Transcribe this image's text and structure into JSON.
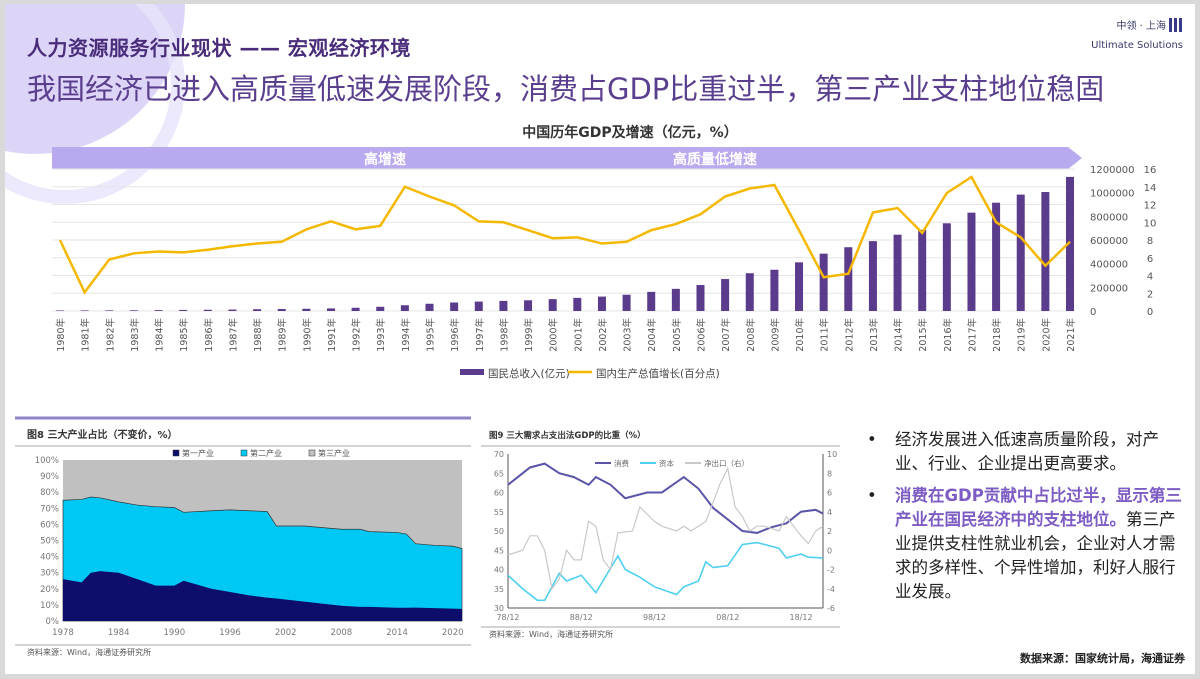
{
  "header": {
    "title": "人力资源服务行业现状 —— 宏观经济环境",
    "subtitle": "我国经济已进入高质量低速发展阶段，消费占GDP比重过半，第三产业支柱地位稳固"
  },
  "logo": {
    "cn": "中领 · 上海",
    "en": "Ultimate Solutions"
  },
  "colors": {
    "bar": "#5b3b8c",
    "line": "#f5b800",
    "band": "#b9aaf0",
    "primary": "#0d0d6b",
    "secondary": "#00c8f5",
    "tertiary": "#c0c0c0",
    "consumption": "#5a55a8",
    "investment": "#4fd0f0",
    "net_export": "#c8c8c8"
  },
  "chart_data": [
    {
      "type": "bar+line",
      "title": "中国历年GDP及增速（亿元，%）",
      "phases": [
        "高增速",
        "高质量低增速"
      ],
      "categories": [
        "1980年",
        "1981年",
        "1982年",
        "1983年",
        "1984年",
        "1985年",
        "1986年",
        "1987年",
        "1988年",
        "1989年",
        "1990年",
        "1991年",
        "1992年",
        "1993年",
        "1994年",
        "1995年",
        "1996年",
        "1997年",
        "1998年",
        "1999年",
        "2000年",
        "2001年",
        "2002年",
        "2003年",
        "2004年",
        "2005年",
        "2006年",
        "2007年",
        "2008年",
        "2009年",
        "2010年",
        "2011年",
        "2012年",
        "2013年",
        "2014年",
        "2015年",
        "2016年",
        "2017年",
        "2018年",
        "2019年",
        "2020年",
        "2021年"
      ],
      "series": [
        {
          "name": "国民总收入(亿元)",
          "type": "bar",
          "axis": "left",
          "values": [
            4588,
            4936,
            5373,
            6021,
            7279,
            9099,
            10376,
            12175,
            15180,
            17180,
            18873,
            22006,
            27195,
            35673,
            48638,
            61340,
            71814,
            79715,
            85196,
            90564,
            100280,
            110863,
            121717,
            137422,
            161840,
            187319,
            219439,
            270092,
            319245,
            348518,
            411265,
            484753,
            539116,
            590422,
            644791,
            686450,
            741140,
            830945,
            915243,
            983751,
            1005451,
            1133240
          ]
        },
        {
          "name": "国内生产总值增长(百分点)",
          "type": "line",
          "axis": "right",
          "values": [
            8.0,
            2.1,
            5.8,
            6.5,
            6.7,
            6.6,
            6.9,
            7.3,
            7.6,
            7.8,
            9.2,
            10.1,
            9.2,
            9.6,
            14.0,
            12.9,
            11.9,
            10.1,
            10.0,
            9.1,
            8.2,
            8.3,
            7.6,
            7.8,
            9.1,
            9.8,
            10.9,
            12.9,
            13.8,
            14.2,
            9.1,
            3.8,
            4.2,
            11.1,
            11.6,
            8.8,
            13.3,
            15.1,
            10.0,
            8.3,
            5.1,
            7.8
          ]
        }
      ],
      "ylim_left": [
        0,
        1200000
      ],
      "yticks_left": [
        "1200000",
        "1000000",
        "800000",
        "600000",
        "400000",
        "200000",
        "0"
      ],
      "ylim_right": [
        0,
        16
      ],
      "yticks_right": [
        "16",
        "14",
        "12",
        "10",
        "8",
        "6",
        "4",
        "2",
        "0"
      ],
      "grid": true,
      "legend": "bottom"
    },
    {
      "type": "area",
      "title": "图8 三大产业占比（不变价，%）",
      "source": "资料来源：Wind，海通证券研究所",
      "x": [
        1978,
        1980,
        1981,
        1982,
        1984,
        1986,
        1988,
        1990,
        1991,
        1994,
        1996,
        1998,
        2000,
        2001,
        2004,
        2008,
        2010,
        2011,
        2014,
        2015,
        2016,
        2018,
        2020,
        2021
      ],
      "series": [
        {
          "name": "第一产业",
          "values": [
            26,
            24,
            30,
            31,
            30,
            26,
            22,
            22,
            25,
            20,
            18,
            16,
            14.5,
            14,
            12,
            9.5,
            8.8,
            8.8,
            8.2,
            8.2,
            8.3,
            8,
            7.7,
            7.5
          ]
        },
        {
          "name": "第二产业",
          "values": [
            49,
            51.5,
            47,
            45.5,
            44,
            46,
            49,
            48.5,
            42.5,
            48.5,
            51,
            52.5,
            53.5,
            45,
            47,
            47.5,
            48.2,
            46.7,
            46.8,
            45.8,
            39.7,
            39,
            38.8,
            37.5
          ]
        },
        {
          "name": "第三产业",
          "values": [
            25,
            24.5,
            23,
            23.5,
            26,
            28,
            29,
            29.5,
            32.5,
            31.5,
            31,
            31.5,
            32,
            41,
            41,
            43,
            43,
            44.5,
            45,
            46,
            52,
            53,
            53.5,
            55
          ]
        }
      ],
      "xticks": [
        "1978",
        "1984",
        "1990",
        "1996",
        "2002",
        "2008",
        "2014",
        "2020"
      ],
      "yticks": [
        "0%",
        "10%",
        "20%",
        "30%",
        "40%",
        "50%",
        "60%",
        "70%",
        "80%",
        "90%",
        "100%"
      ],
      "ylim": [
        0,
        100
      ],
      "legend": "top"
    },
    {
      "type": "line",
      "title": "图9 三大需求占支出法GDP的比重（%）",
      "source": "资料来源：Wind，海通证券研究所",
      "series": [
        {
          "name": "消费",
          "axis": "left",
          "x": [
            1978,
            1981,
            1983,
            1985,
            1987,
            1989,
            1990,
            1992,
            1994,
            1997,
            1999,
            2002,
            2004,
            2006,
            2008,
            2010,
            2012,
            2014,
            2016,
            2018,
            2020,
            2021
          ],
          "values": [
            62,
            66.5,
            67.5,
            65,
            64,
            62,
            64,
            62,
            58.5,
            60,
            60,
            64,
            61,
            56,
            53,
            50,
            49.5,
            51,
            52,
            55,
            55.5,
            54.5
          ]
        },
        {
          "name": "资本",
          "axis": "left",
          "x": [
            1978,
            1980,
            1982,
            1983,
            1985,
            1986,
            1988,
            1990,
            1993,
            1994,
            1996,
            1998,
            2001,
            2002,
            2004,
            2005,
            2006,
            2008,
            2010,
            2012,
            2014,
            2015,
            2016,
            2018,
            2019,
            2021
          ],
          "values": [
            38.5,
            35,
            32,
            32,
            39,
            37,
            38.5,
            34,
            43.5,
            40,
            38,
            35.5,
            33.5,
            35.5,
            37,
            42,
            40.5,
            41,
            46.5,
            47,
            46,
            45.5,
            43,
            44,
            43.2,
            43
          ]
        },
        {
          "name": "净出口（右）",
          "axis": "right",
          "x": [
            1978,
            1980,
            1981,
            1982,
            1983,
            1984,
            1985,
            1986,
            1987,
            1988,
            1989,
            1990,
            1991,
            1992,
            1993,
            1995,
            1996,
            1998,
            1999,
            2001,
            2002,
            2003,
            2005,
            2007,
            2008,
            2009,
            2010,
            2011,
            2012,
            2013,
            2015,
            2016,
            2018,
            2019,
            2020,
            2021
          ],
          "values": [
            -0.5,
            0,
            1.5,
            1.5,
            0,
            -4,
            -3,
            0,
            -1,
            -1,
            3,
            2.5,
            -1,
            -2,
            1.8,
            2,
            4.5,
            3,
            2.5,
            2,
            2.5,
            2,
            3,
            7,
            8.5,
            4.5,
            3.5,
            2,
            2.5,
            2.5,
            2,
            3.5,
            1.5,
            0.7,
            2,
            2.5
          ]
        }
      ],
      "xticks": [
        "78/12",
        "88/12",
        "98/12",
        "08/12",
        "18/12"
      ],
      "yticks_left": [
        "30",
        "35",
        "40",
        "45",
        "50",
        "55",
        "60",
        "65",
        "70"
      ],
      "ylim_left": [
        30,
        70
      ],
      "yticks_right": [
        "-6",
        "-4",
        "-2",
        "0",
        "2",
        "4",
        "6",
        "8",
        "10"
      ],
      "ylim_right": [
        -6,
        10
      ],
      "legend": "top"
    }
  ],
  "bullets": [
    {
      "text": "经济发展进入低速高质量阶段，对产业、行业、企业提出更高要求。"
    },
    {
      "highlight": "消费在GDP贡献中占比过半，显示第三产业在国民经济中的支柱地位。",
      "text": "第三产业提供支柱性就业机会，企业对人才需求的多样性、个异性增加，利好人服行业发展。"
    }
  ],
  "source_note": "数据来源：国家统计局，海通证券"
}
